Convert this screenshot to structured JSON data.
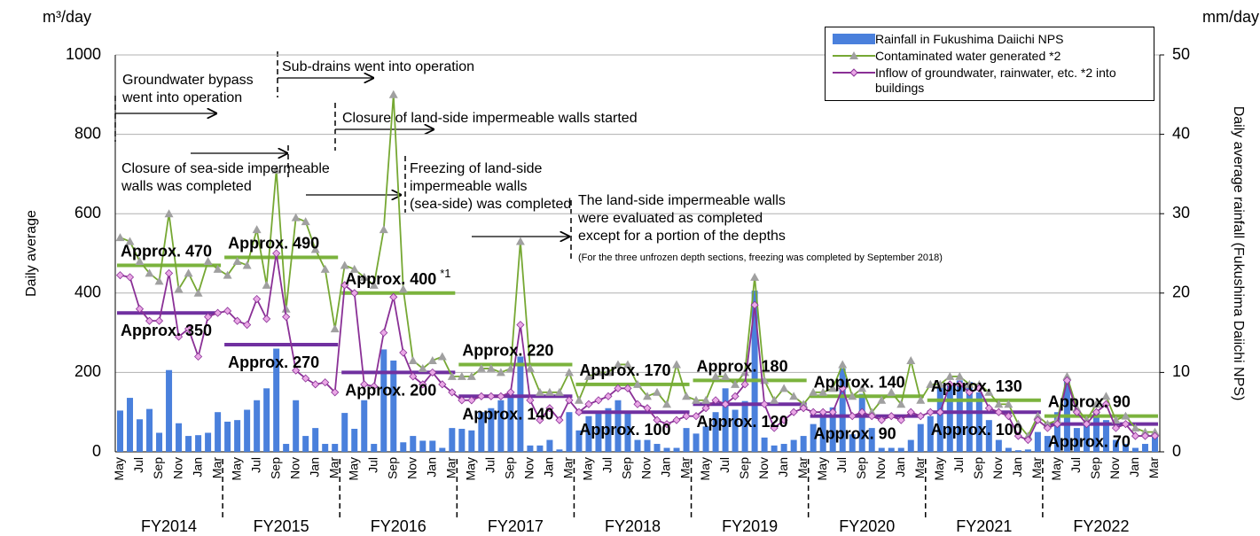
{
  "chart_data": {
    "type": "bar_line",
    "y_unit": "m³/day",
    "y2_unit": "mm/day",
    "ylabel": "Daily average",
    "y2label": "Daily average rainfall (Fukushima Daiichi NPS)",
    "ylim": [
      0,
      1000
    ],
    "yticks": [
      0,
      200,
      400,
      600,
      800,
      1000
    ],
    "y2lim": [
      0,
      50
    ],
    "y2ticks": [
      0,
      10,
      20,
      30,
      40,
      50
    ],
    "grid": true,
    "categories": [
      "May",
      null,
      "Jul",
      null,
      "Sep",
      null,
      "Nov",
      null,
      "Jan",
      null,
      "Mar",
      null,
      "May",
      null,
      "Jul",
      null,
      "Sep",
      null,
      "Nov",
      null,
      "Jan",
      null,
      "Mar",
      null,
      "May",
      null,
      "Jul",
      null,
      "Sep",
      null,
      "Nov",
      null,
      "Jan",
      null,
      "Mar",
      null,
      "May",
      null,
      "Jul",
      null,
      "Sep",
      null,
      "Nov",
      null,
      "Jan",
      null,
      "Mar",
      null,
      "May",
      null,
      "Jul",
      null,
      "Sep",
      null,
      "Nov",
      null,
      "Jan",
      null,
      "Mar",
      null,
      "May",
      null,
      "Jul",
      null,
      "Sep",
      null,
      "Nov",
      null,
      "Jan",
      null,
      "Mar",
      null,
      "May",
      null,
      "Jul",
      null,
      "Sep",
      null,
      "Nov",
      null,
      "Jan",
      null,
      "Mar",
      null,
      "May",
      null,
      "Jul",
      null,
      "Sep",
      null,
      "Nov",
      null,
      "Jan",
      null,
      "Mar",
      null,
      "May",
      null,
      "Jul",
      null,
      "Sep",
      null,
      "Nov",
      null,
      "Jan",
      null,
      "Mar"
    ],
    "series": [
      {
        "name": "Rainfall in Fukushima Daiichi NPS",
        "kind": "bar",
        "axis": "y2",
        "color": "#4a80dc",
        "values": [
          5.2,
          6.8,
          4.1,
          5.4,
          2.4,
          10.3,
          3.6,
          2.0,
          2.1,
          2.4,
          5.0,
          3.8,
          4.0,
          5.3,
          6.5,
          8.0,
          13.0,
          1.0,
          6.5,
          2.0,
          3.0,
          1.0,
          1.0,
          4.9,
          2.9,
          6.5,
          1.0,
          12.9,
          11.5,
          1.2,
          2.0,
          1.4,
          1.4,
          0.5,
          3.0,
          2.9,
          2.7,
          5.0,
          5.5,
          6.5,
          7.3,
          12.0,
          0.8,
          0.8,
          1.5,
          0.3,
          5.0,
          2.7,
          4.5,
          4.8,
          5.5,
          6.5,
          5.0,
          1.5,
          1.5,
          1.0,
          0.5,
          0.5,
          3.0,
          2.3,
          3.2,
          5.0,
          8.0,
          5.3,
          6.4,
          20.3,
          1.8,
          0.8,
          1.0,
          1.5,
          2.0,
          3.5,
          5.0,
          5.6,
          10.5,
          2.2,
          7.3,
          3.0,
          0.5,
          0.5,
          0.5,
          1.5,
          3.5,
          4.5,
          8.5,
          8.5,
          9.0,
          8.8,
          7.5,
          4.0,
          1.5,
          0.5,
          0.2,
          0.3,
          2.5,
          2.0,
          5.0,
          9.0,
          3.0,
          3.5,
          5.0,
          4.0,
          1.5,
          1.0,
          0.5,
          1.0,
          2.0
        ]
      },
      {
        "name": "Contaminated water generated *2",
        "kind": "line",
        "marker": "triangle",
        "color": "#76a833",
        "marker_color": "#a0a0a0",
        "values": [
          540,
          530,
          480,
          450,
          430,
          600,
          410,
          450,
          400,
          480,
          460,
          445,
          480,
          470,
          560,
          420,
          710,
          360,
          590,
          580,
          510,
          460,
          310,
          470,
          460,
          440,
          420,
          560,
          900,
          410,
          230,
          210,
          230,
          240,
          190,
          190,
          190,
          210,
          210,
          200,
          210,
          530,
          210,
          150,
          150,
          150,
          200,
          130,
          190,
          200,
          200,
          220,
          220,
          170,
          140,
          150,
          120,
          220,
          140,
          130,
          130,
          190,
          190,
          170,
          200,
          440,
          180,
          130,
          160,
          140,
          120,
          150,
          150,
          160,
          220,
          140,
          160,
          100,
          130,
          150,
          120,
          230,
          130,
          170,
          170,
          190,
          190,
          170,
          170,
          150,
          120,
          120,
          70,
          40,
          90,
          70,
          80,
          190,
          110,
          80,
          120,
          140,
          80,
          90,
          60,
          50,
          50
        ]
      },
      {
        "name": "Inflow of groundwater, rainwater, etc. *2 into buildings",
        "kind": "line",
        "marker": "diamond",
        "color": "#8a3096",
        "marker_color": "#eaa8e6",
        "values": [
          445,
          440,
          360,
          330,
          330,
          450,
          290,
          310,
          240,
          340,
          350,
          355,
          330,
          320,
          385,
          335,
          500,
          340,
          205,
          185,
          170,
          175,
          150,
          420,
          400,
          170,
          165,
          300,
          390,
          250,
          190,
          170,
          200,
          170,
          150,
          130,
          130,
          140,
          140,
          140,
          150,
          320,
          130,
          80,
          110,
          80,
          130,
          100,
          120,
          130,
          140,
          160,
          160,
          120,
          110,
          80,
          70,
          80,
          90,
          90,
          110,
          130,
          120,
          140,
          170,
          370,
          120,
          60,
          80,
          100,
          110,
          100,
          100,
          100,
          160,
          90,
          100,
          90,
          80,
          90,
          80,
          100,
          90,
          100,
          100,
          170,
          170,
          150,
          160,
          110,
          100,
          90,
          40,
          30,
          80,
          60,
          70,
          180,
          100,
          70,
          100,
          120,
          60,
          70,
          40,
          40,
          40
        ]
      }
    ],
    "fiscal_years": [
      {
        "label": "FY2014",
        "contaminated": {
          "value": 470,
          "label": "Approx. 470"
        },
        "inflow": {
          "value": 350,
          "label": "Approx. 350"
        }
      },
      {
        "label": "FY2015",
        "contaminated": {
          "value": 490,
          "label": "Approx. 490"
        },
        "inflow": {
          "value": 270,
          "label": "Approx. 270"
        }
      },
      {
        "label": "FY2016",
        "contaminated": {
          "value": 400,
          "label": "Approx. 400"
        },
        "note": "*1",
        "inflow": {
          "value": 200,
          "label": "Approx. 200"
        }
      },
      {
        "label": "FY2017",
        "contaminated": {
          "value": 220,
          "label": "Approx. 220"
        },
        "inflow": {
          "value": 140,
          "label": "Approx. 140"
        }
      },
      {
        "label": "FY2018",
        "contaminated": {
          "value": 170,
          "label": "Approx. 170"
        },
        "inflow": {
          "value": 100,
          "label": "Approx. 100"
        }
      },
      {
        "label": "FY2019",
        "contaminated": {
          "value": 180,
          "label": "Approx. 180"
        },
        "inflow": {
          "value": 120,
          "label": "Approx. 120"
        }
      },
      {
        "label": "FY2020",
        "contaminated": {
          "value": 140,
          "label": "Approx. 140"
        },
        "inflow": {
          "value": 90,
          "label": "Approx. 90"
        }
      },
      {
        "label": "FY2021",
        "contaminated": {
          "value": 130,
          "label": "Approx. 130"
        },
        "inflow": {
          "value": 100,
          "label": "Approx. 100"
        }
      },
      {
        "label": "FY2022",
        "contaminated": {
          "value": 90,
          "label": "Approx. 90"
        },
        "inflow": {
          "value": 70,
          "label": "Approx. 70"
        }
      }
    ],
    "avg_colors": {
      "contaminated": "#7bb33d",
      "inflow": "#7030a0"
    },
    "annotations": [
      {
        "lines": [
          "Groundwater bypass",
          "went into operation"
        ]
      },
      {
        "lines": [
          "Sub-drains went into operation"
        ]
      },
      {
        "lines": [
          "Closure of land-side impermeable walls started"
        ]
      },
      {
        "lines": [
          "Closure of sea-side impermeable",
          "walls was completed"
        ]
      },
      {
        "lines": [
          "Freezing of land-side",
          "impermeable walls",
          "(sea-side) was completed"
        ]
      },
      {
        "lines": [
          "The land-side impermeable walls",
          "were evaluated as completed",
          "except for a portion of the depths"
        ]
      },
      {
        "lines": [
          "(For the three unfrozen depth sections, freezing was completed by September 2018)"
        ]
      }
    ]
  }
}
